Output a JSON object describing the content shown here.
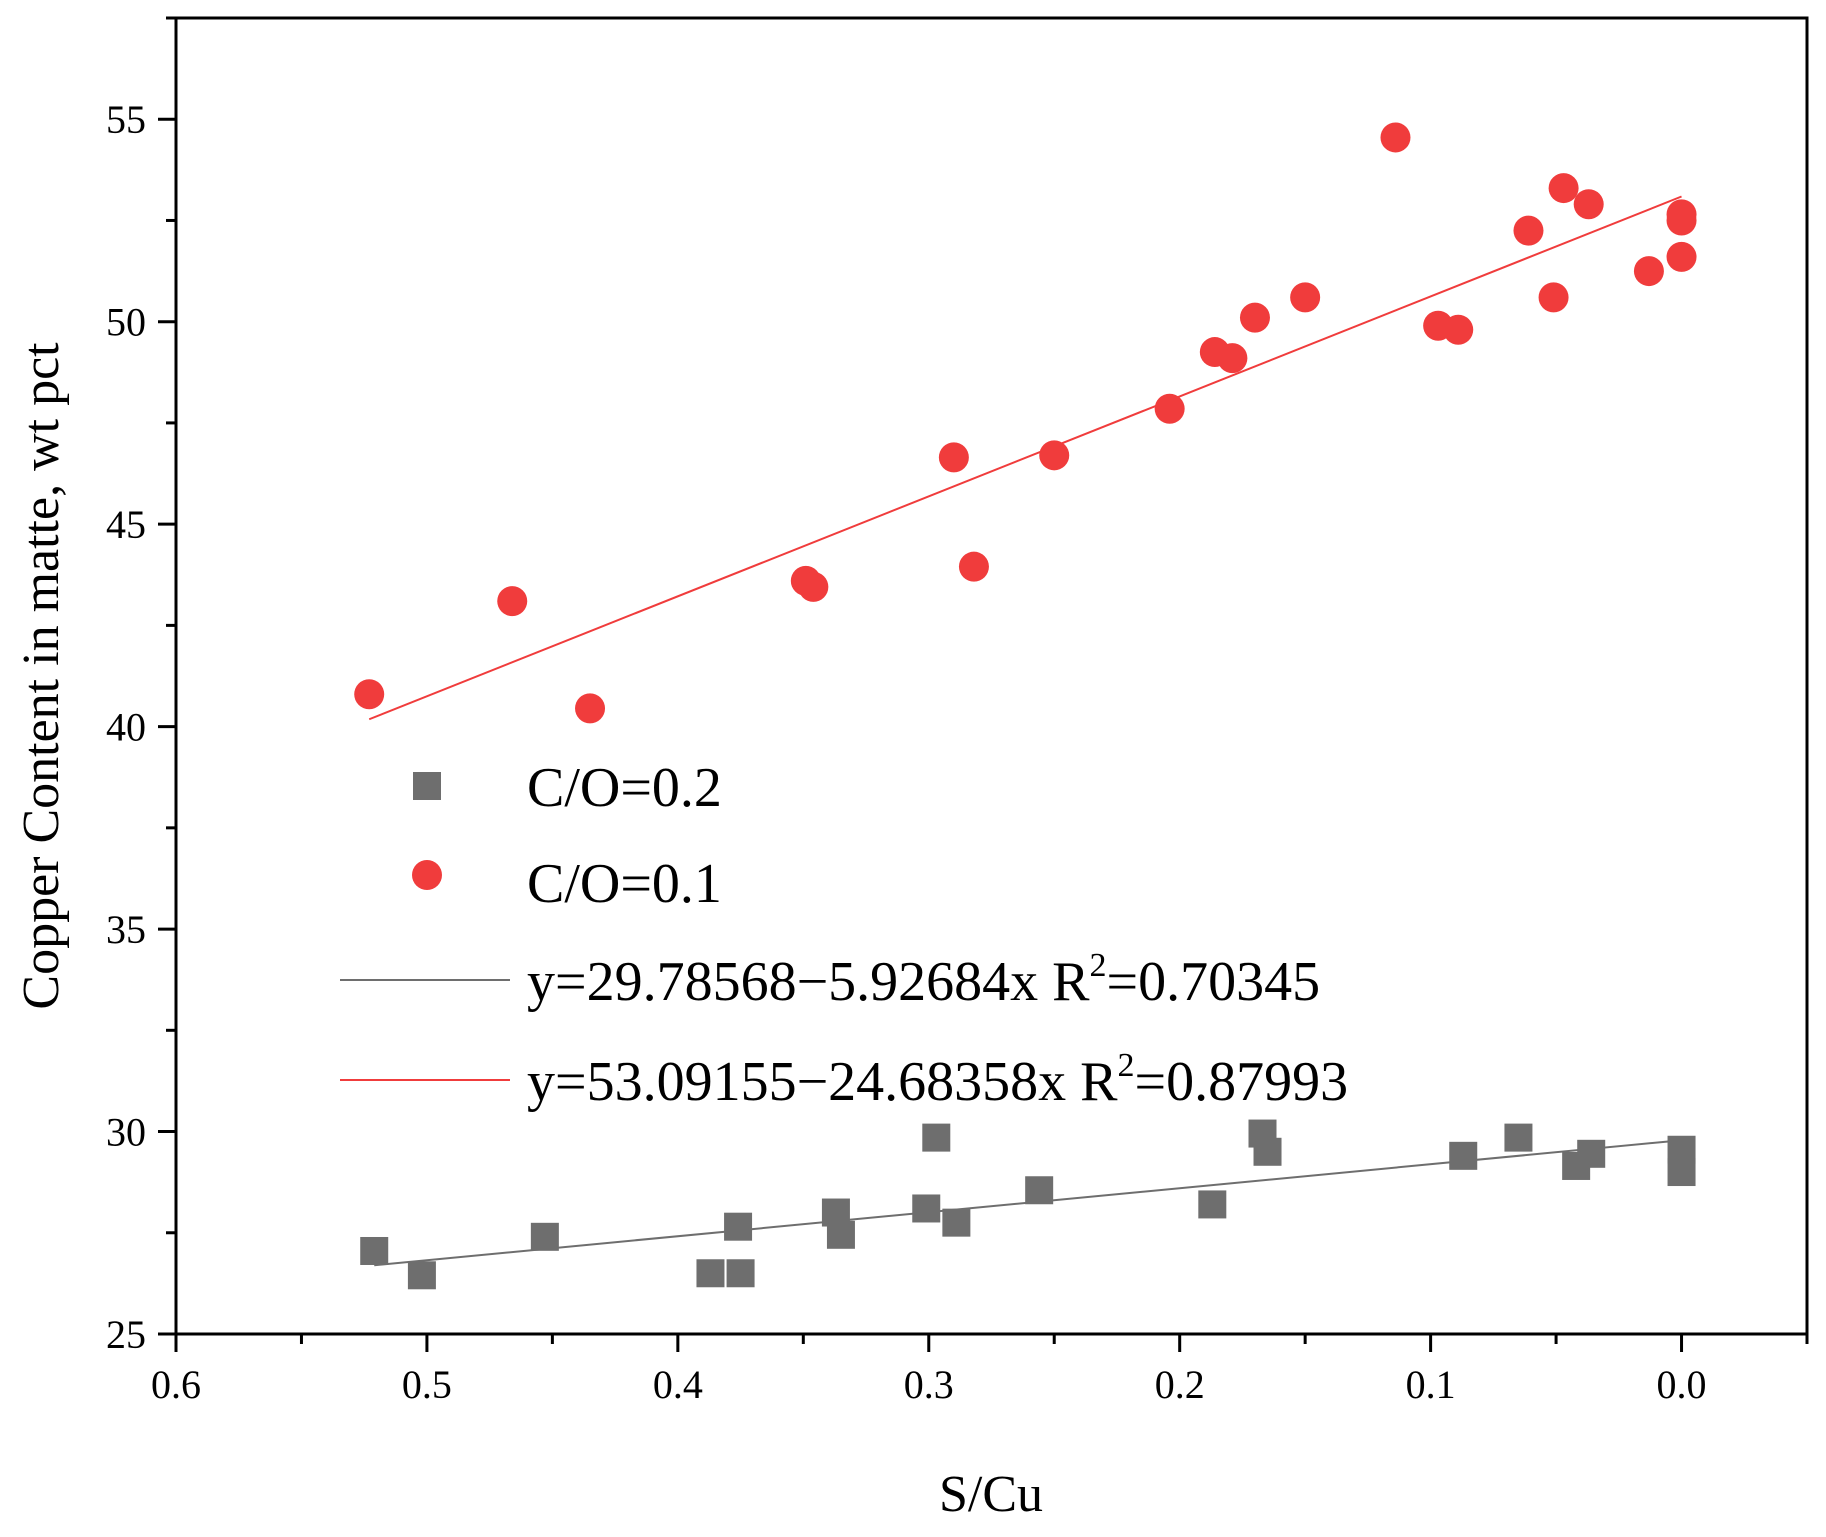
{
  "chart_data": {
    "type": "scatter",
    "title": "",
    "xlabel": "S/Cu",
    "ylabel": "Copper Content in matte, wt pct",
    "xlim": [
      0.6,
      -0.05
    ],
    "ylim": [
      25,
      57.5
    ],
    "x_ticks": [
      0.6,
      0.5,
      0.4,
      0.3,
      0.2,
      0.1,
      0.0
    ],
    "x_tick_labels": [
      "0.6",
      "0.5",
      "0.4",
      "0.3",
      "0.2",
      "0.1",
      "0.0"
    ],
    "y_ticks": [
      25,
      30,
      35,
      40,
      45,
      50,
      55
    ],
    "y_tick_labels": [
      "25",
      "30",
      "35",
      "40",
      "45",
      "50",
      "55"
    ],
    "grid": false,
    "legend_position": "center-left",
    "series": [
      {
        "name": "C/O=0.2",
        "marker": "square",
        "color": "#6e6e6e",
        "points": [
          [
            0.521,
            27.05
          ],
          [
            0.502,
            26.45
          ],
          [
            0.453,
            27.4
          ],
          [
            0.387,
            26.5
          ],
          [
            0.376,
            27.65
          ],
          [
            0.375,
            26.5
          ],
          [
            0.337,
            28.0
          ],
          [
            0.335,
            27.45
          ],
          [
            0.301,
            28.1
          ],
          [
            0.297,
            29.85
          ],
          [
            0.289,
            27.75
          ],
          [
            0.256,
            28.55
          ],
          [
            0.187,
            28.2
          ],
          [
            0.167,
            29.95
          ],
          [
            0.165,
            29.5
          ],
          [
            0.087,
            29.4
          ],
          [
            0.065,
            29.85
          ],
          [
            0.042,
            29.15
          ],
          [
            0.036,
            29.45
          ],
          [
            0.0,
            29.55
          ],
          [
            0.0,
            29.0
          ]
        ]
      },
      {
        "name": "C/O=0.1",
        "marker": "circle",
        "color": "#f03c3c",
        "points": [
          [
            0.523,
            40.8
          ],
          [
            0.466,
            43.1
          ],
          [
            0.435,
            40.45
          ],
          [
            0.349,
            43.6
          ],
          [
            0.346,
            43.45
          ],
          [
            0.29,
            46.65
          ],
          [
            0.282,
            43.95
          ],
          [
            0.25,
            46.7
          ],
          [
            0.204,
            47.85
          ],
          [
            0.186,
            49.25
          ],
          [
            0.179,
            49.1
          ],
          [
            0.17,
            50.1
          ],
          [
            0.15,
            50.6
          ],
          [
            0.114,
            54.55
          ],
          [
            0.097,
            49.9
          ],
          [
            0.089,
            49.8
          ],
          [
            0.061,
            52.25
          ],
          [
            0.051,
            50.6
          ],
          [
            0.047,
            53.3
          ],
          [
            0.037,
            52.9
          ],
          [
            0.013,
            51.25
          ],
          [
            0.0,
            52.65
          ],
          [
            0.0,
            52.5
          ],
          [
            0.0,
            51.6
          ]
        ]
      }
    ],
    "fits": [
      {
        "name": "y=29.78568−5.92684x R2=0.70345",
        "intercept": 29.78568,
        "slope": -5.92684,
        "x_range": [
          0.0,
          0.521
        ],
        "color": "#6e6e6e"
      },
      {
        "name": "y=53.09155−24.68358x R2=0.87993",
        "intercept": 53.09155,
        "slope": -24.68358,
        "x_range": [
          0.0,
          0.523
        ],
        "color": "#f03c3c"
      }
    ]
  },
  "legend": {
    "items": [
      {
        "label": "C/O=0.2"
      },
      {
        "label": "C/O=0.1"
      },
      {
        "label_main": "y=29.78568−5.92684x R",
        "sup": "2",
        "label_tail": "=0.70345"
      },
      {
        "label_main": "y=53.09155−24.68358x R",
        "sup": "2",
        "label_tail": "=0.87993"
      }
    ]
  }
}
